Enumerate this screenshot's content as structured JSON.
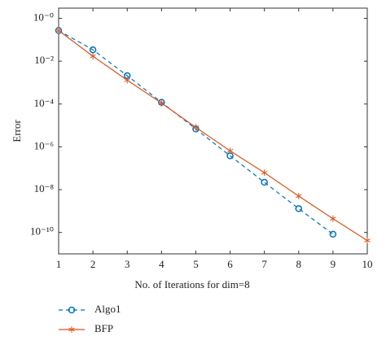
{
  "chart_data": {
    "type": "line",
    "x_label": "No. of Iterations for dim=8",
    "y_label": "Error",
    "x": [
      1,
      2,
      3,
      4,
      5,
      6,
      7,
      8,
      9,
      10
    ],
    "series": [
      {
        "name": "Algo1",
        "color": "#0072bd",
        "linestyle": "dashed",
        "marker": "circle",
        "values": [
          0.27,
          0.034,
          0.0021,
          0.00012,
          6.8e-06,
          3.8e-07,
          2.2e-08,
          1.3e-09,
          8.3e-11,
          null
        ]
      },
      {
        "name": "BFP",
        "color": "#d95319",
        "linestyle": "solid",
        "marker": "asterisk",
        "values": [
          0.27,
          0.017,
          0.0013,
          0.00011,
          8.1e-06,
          6.5e-07,
          6.2e-08,
          5e-09,
          4.4e-10,
          4.2e-11
        ]
      }
    ],
    "xlim": [
      1,
      10
    ],
    "xticks": [
      1,
      2,
      3,
      4,
      5,
      6,
      7,
      8,
      9,
      10
    ],
    "ylim": [
      1e-11,
      3
    ],
    "yscale": "log",
    "yticks": [
      {
        "value": 1,
        "label": "10⁻⁰"
      },
      {
        "value": 0.01,
        "label": "10⁻²"
      },
      {
        "value": 0.0001,
        "label": "10⁻⁴"
      },
      {
        "value": 1e-06,
        "label": "10⁻⁶"
      },
      {
        "value": 1e-08,
        "label": "10⁻⁸"
      },
      {
        "value": 1e-10,
        "label": "10⁻¹⁰"
      }
    ],
    "grid": false,
    "legend": "below"
  }
}
